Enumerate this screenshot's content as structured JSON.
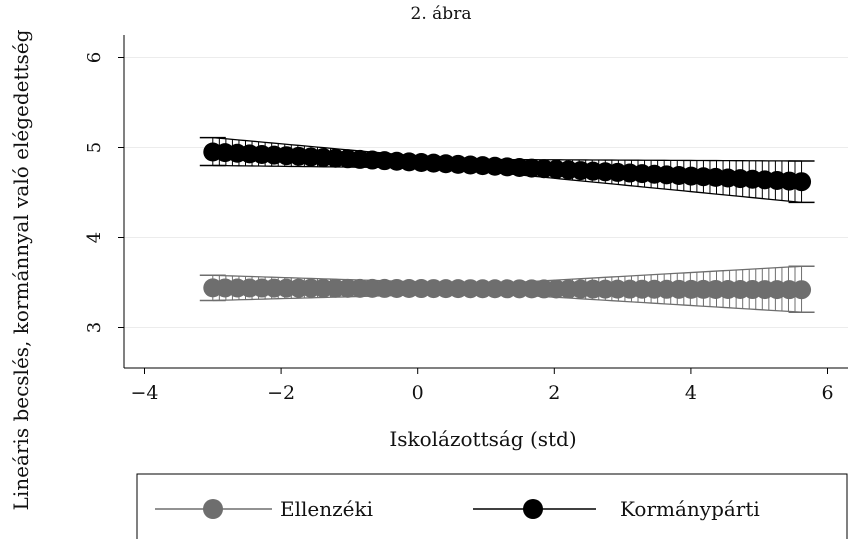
{
  "chart_data": {
    "type": "line",
    "title": "2. ábra",
    "xlabel": "Iskolázottság (std)",
    "ylabel": "Lineáris becslés, kormánnyal való elégedettség",
    "xlim": [
      -4.3,
      6.3
    ],
    "ylim": [
      2.55,
      6.25
    ],
    "xticks": [
      -4,
      -2,
      0,
      2,
      4,
      6
    ],
    "xtick_labels": [
      "−4",
      "−2",
      "0",
      "2",
      "4",
      "6"
    ],
    "yticks": [
      3,
      4,
      5,
      6
    ],
    "ytick_labels": [
      "3",
      "4",
      "5",
      "6"
    ],
    "grid": true,
    "legend_position": "bottom",
    "series": [
      {
        "name": "Ellenzéki",
        "color": "#6e6e6e",
        "x_start": -3.0,
        "x_end": 5.62,
        "y_start": 3.44,
        "y_end": 3.42,
        "ci_low_start": 3.3,
        "ci_high_start": 3.58,
        "ci_min_width": 0.1,
        "ci_low_end": 3.17,
        "ci_high_end": 3.68,
        "x_min_ci": 1.0
      },
      {
        "name": "Kormánypárti",
        "color": "#000000",
        "x_start": -3.0,
        "x_end": 5.62,
        "y_start": 4.95,
        "y_end": 4.62,
        "ci_low_start": 4.8,
        "ci_high_start": 5.11,
        "ci_min_width": 0.1,
        "ci_low_end": 4.39,
        "ci_high_end": 4.85,
        "x_min_ci": 0.5
      }
    ],
    "legend": {
      "items": [
        {
          "label": "Ellenzéki",
          "color": "#6e6e6e"
        },
        {
          "label": "Kormánypárti",
          "color": "#000000"
        }
      ]
    }
  }
}
